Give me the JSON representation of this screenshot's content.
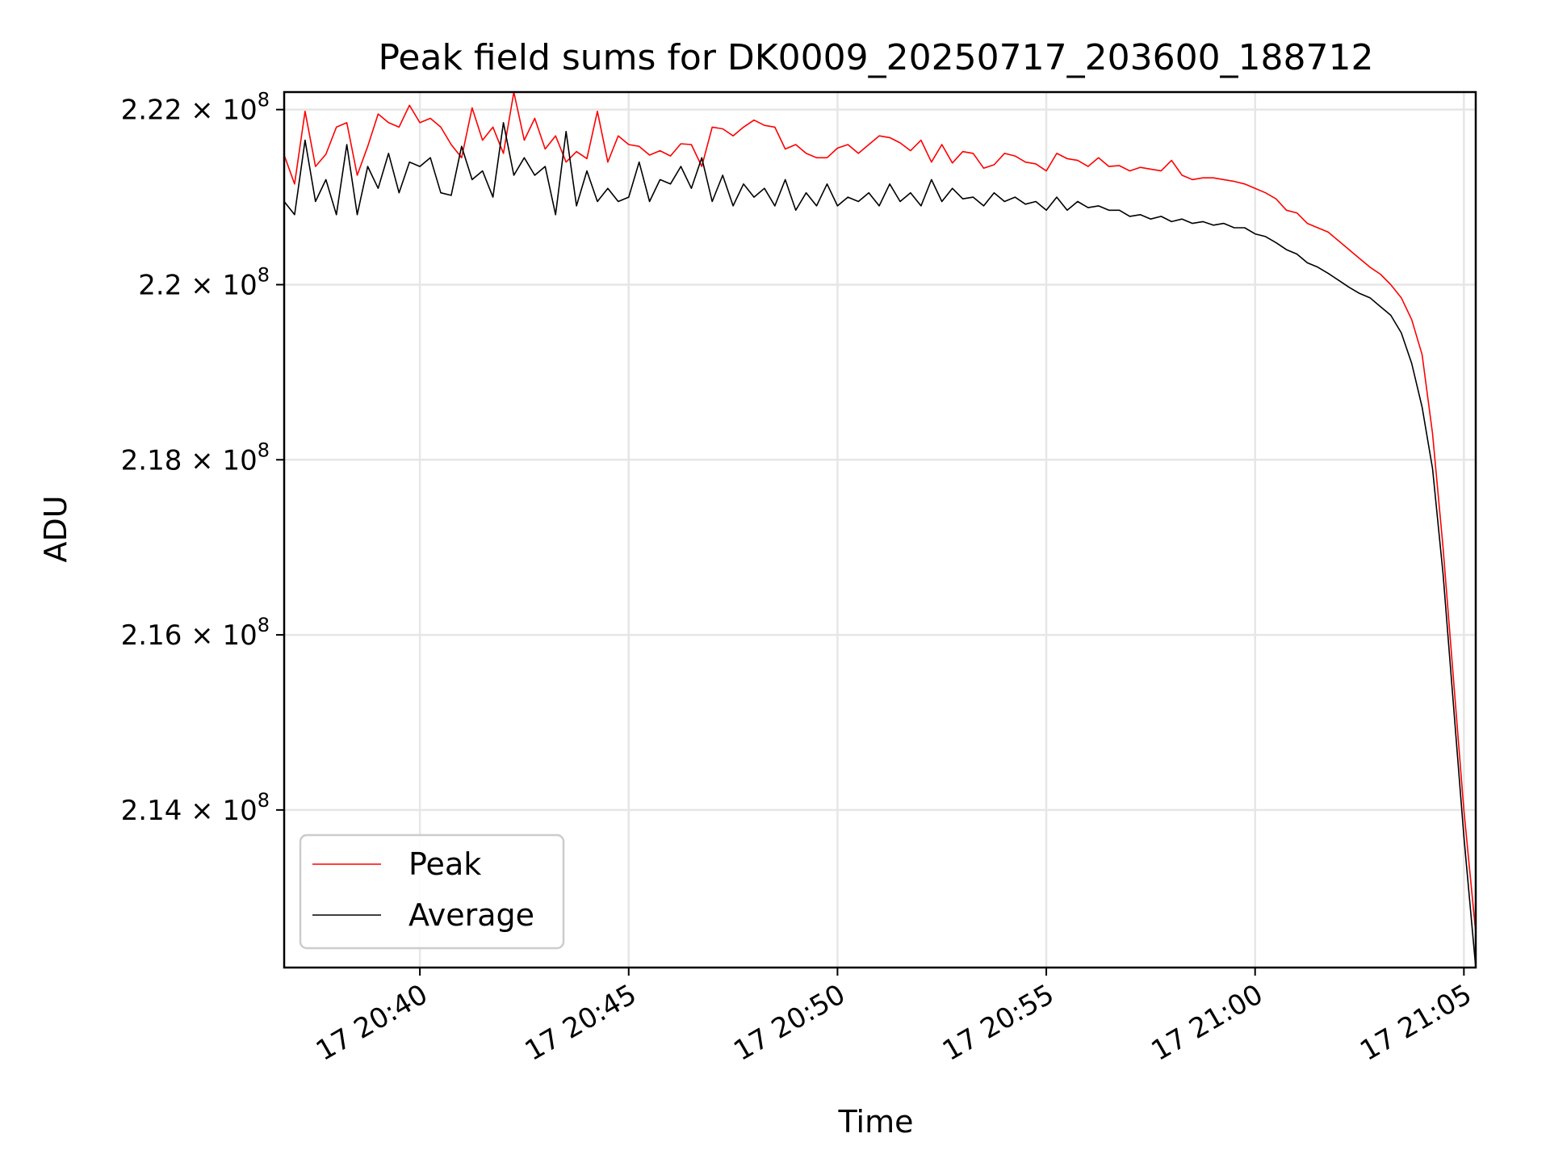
{
  "chart_data": {
    "type": "line",
    "title": "Peak field sums for DK0009_20250717_203600_188712",
    "xlabel": "Time",
    "ylabel": "ADU",
    "grid": true,
    "legend_position": "lower-left",
    "x_range": [
      "17 20:36:45",
      "17 21:05:17"
    ],
    "y_range": [
      212200000,
      222200000
    ],
    "x_ticks": [
      {
        "time": "17 20:40:00",
        "label": "17 20:40"
      },
      {
        "time": "17 20:45:00",
        "label": "17 20:45"
      },
      {
        "time": "17 20:50:00",
        "label": "17 20:50"
      },
      {
        "time": "17 20:55:00",
        "label": "17 20:55"
      },
      {
        "time": "17 21:00:00",
        "label": "17 21:00"
      },
      {
        "time": "17 21:05:00",
        "label": "17 21:05"
      }
    ],
    "y_ticks": [
      {
        "value": 221999999,
        "mantissa": "2.22",
        "exp": "8"
      },
      {
        "value": 220000000,
        "mantissa": "2.2",
        "exp": "8"
      },
      {
        "value": 218000000,
        "mantissa": "2.18",
        "exp": "8"
      },
      {
        "value": 216000000,
        "mantissa": "2.16",
        "exp": "8"
      },
      {
        "value": 214000000,
        "mantissa": "2.14",
        "exp": "8"
      }
    ],
    "series": [
      {
        "name": "Peak",
        "color": "#ff0000",
        "points": [
          [
            "17 20:36:45",
            221480000
          ],
          [
            "17 20:37:00",
            221150000
          ],
          [
            "17 20:37:15",
            221980000
          ],
          [
            "17 20:37:30",
            221350000
          ],
          [
            "17 20:37:45",
            221490000
          ],
          [
            "17 20:38:00",
            221800000
          ],
          [
            "17 20:38:15",
            221850000
          ],
          [
            "17 20:38:30",
            221250000
          ],
          [
            "17 20:38:45",
            221580000
          ],
          [
            "17 20:39:00",
            221950000
          ],
          [
            "17 20:39:15",
            221850000
          ],
          [
            "17 20:39:30",
            221800000
          ],
          [
            "17 20:39:45",
            222050000
          ],
          [
            "17 20:40:00",
            221850000
          ],
          [
            "17 20:40:15",
            221900000
          ],
          [
            "17 20:40:30",
            221800000
          ],
          [
            "17 20:40:45",
            221600000
          ],
          [
            "17 20:41:00",
            221450000
          ],
          [
            "17 20:41:15",
            222020000
          ],
          [
            "17 20:41:30",
            221650000
          ],
          [
            "17 20:41:45",
            221800000
          ],
          [
            "17 20:42:00",
            221500000
          ],
          [
            "17 20:42:15",
            222200000
          ],
          [
            "17 20:42:30",
            221650000
          ],
          [
            "17 20:42:45",
            221900000
          ],
          [
            "17 20:43:00",
            221550000
          ],
          [
            "17 20:43:15",
            221700000
          ],
          [
            "17 20:43:30",
            221400000
          ],
          [
            "17 20:43:45",
            221520000
          ],
          [
            "17 20:44:00",
            221440000
          ],
          [
            "17 20:44:15",
            221980000
          ],
          [
            "17 20:44:30",
            221400000
          ],
          [
            "17 20:44:45",
            221700000
          ],
          [
            "17 20:45:00",
            221600000
          ],
          [
            "17 20:45:15",
            221580000
          ],
          [
            "17 20:45:30",
            221480000
          ],
          [
            "17 20:45:45",
            221530000
          ],
          [
            "17 20:46:00",
            221470000
          ],
          [
            "17 20:46:15",
            221610000
          ],
          [
            "17 20:46:30",
            221600000
          ],
          [
            "17 20:46:45",
            221350000
          ],
          [
            "17 20:47:00",
            221800000
          ],
          [
            "17 20:47:15",
            221780000
          ],
          [
            "17 20:47:30",
            221700000
          ],
          [
            "17 20:47:45",
            221800000
          ],
          [
            "17 20:48:00",
            221880000
          ],
          [
            "17 20:48:15",
            221820000
          ],
          [
            "17 20:48:30",
            221800000
          ],
          [
            "17 20:48:45",
            221550000
          ],
          [
            "17 20:49:00",
            221600000
          ],
          [
            "17 20:49:15",
            221500000
          ],
          [
            "17 20:49:30",
            221450000
          ],
          [
            "17 20:49:45",
            221450000
          ],
          [
            "17 20:50:00",
            221560000
          ],
          [
            "17 20:50:15",
            221600000
          ],
          [
            "17 20:50:30",
            221500000
          ],
          [
            "17 20:50:45",
            221600000
          ],
          [
            "17 20:51:00",
            221700000
          ],
          [
            "17 20:51:15",
            221680000
          ],
          [
            "17 20:51:30",
            221620000
          ],
          [
            "17 20:51:45",
            221530000
          ],
          [
            "17 20:52:00",
            221650000
          ],
          [
            "17 20:52:15",
            221400000
          ],
          [
            "17 20:52:30",
            221600000
          ],
          [
            "17 20:52:45",
            221390000
          ],
          [
            "17 20:53:00",
            221520000
          ],
          [
            "17 20:53:15",
            221500000
          ],
          [
            "17 20:53:30",
            221330000
          ],
          [
            "17 20:53:45",
            221370000
          ],
          [
            "17 20:54:00",
            221500000
          ],
          [
            "17 20:54:15",
            221470000
          ],
          [
            "17 20:54:30",
            221400000
          ],
          [
            "17 20:54:45",
            221380000
          ],
          [
            "17 20:55:00",
            221300000
          ],
          [
            "17 20:55:15",
            221500000
          ],
          [
            "17 20:55:30",
            221440000
          ],
          [
            "17 20:55:45",
            221420000
          ],
          [
            "17 20:56:00",
            221350000
          ],
          [
            "17 20:56:15",
            221450000
          ],
          [
            "17 20:56:30",
            221350000
          ],
          [
            "17 20:56:45",
            221360000
          ],
          [
            "17 20:57:00",
            221300000
          ],
          [
            "17 20:57:15",
            221340000
          ],
          [
            "17 20:57:30",
            221320000
          ],
          [
            "17 20:57:45",
            221300000
          ],
          [
            "17 20:58:00",
            221420000
          ],
          [
            "17 20:58:15",
            221250000
          ],
          [
            "17 20:58:30",
            221200000
          ],
          [
            "17 20:58:45",
            221220000
          ],
          [
            "17 20:59:00",
            221220000
          ],
          [
            "17 20:59:15",
            221200000
          ],
          [
            "17 20:59:30",
            221180000
          ],
          [
            "17 20:59:45",
            221150000
          ],
          [
            "17 21:00:00",
            221100000
          ],
          [
            "17 21:00:15",
            221050000
          ],
          [
            "17 21:00:30",
            220980000
          ],
          [
            "17 21:00:45",
            220850000
          ],
          [
            "17 21:01:00",
            220820000
          ],
          [
            "17 21:01:15",
            220700000
          ],
          [
            "17 21:01:30",
            220650000
          ],
          [
            "17 21:01:45",
            220600000
          ],
          [
            "17 21:02:00",
            220500000
          ],
          [
            "17 21:02:15",
            220400000
          ],
          [
            "17 21:02:30",
            220300000
          ],
          [
            "17 21:02:45",
            220200000
          ],
          [
            "17 21:03:00",
            220120000
          ],
          [
            "17 21:03:15",
            220000000
          ],
          [
            "17 21:03:30",
            219850000
          ],
          [
            "17 21:03:45",
            219600000
          ],
          [
            "17 21:04:00",
            219200000
          ],
          [
            "17 21:04:15",
            218300000
          ],
          [
            "17 21:04:30",
            217000000
          ],
          [
            "17 21:04:45",
            215500000
          ],
          [
            "17 21:05:00",
            214000000
          ],
          [
            "17 21:05:17",
            212600000
          ]
        ]
      },
      {
        "name": "Average",
        "color": "#000000",
        "points": [
          [
            "17 20:36:45",
            220950000
          ],
          [
            "17 20:37:00",
            220800000
          ],
          [
            "17 20:37:15",
            221650000
          ],
          [
            "17 20:37:30",
            220950000
          ],
          [
            "17 20:37:45",
            221200000
          ],
          [
            "17 20:38:00",
            220800000
          ],
          [
            "17 20:38:15",
            221600000
          ],
          [
            "17 20:38:30",
            220800000
          ],
          [
            "17 20:38:45",
            221350000
          ],
          [
            "17 20:39:00",
            221100000
          ],
          [
            "17 20:39:15",
            221500000
          ],
          [
            "17 20:39:30",
            221050000
          ],
          [
            "17 20:39:45",
            221400000
          ],
          [
            "17 20:40:00",
            221350000
          ],
          [
            "17 20:40:15",
            221450000
          ],
          [
            "17 20:40:30",
            221050000
          ],
          [
            "17 20:40:45",
            221020000
          ],
          [
            "17 20:41:00",
            221580000
          ],
          [
            "17 20:41:15",
            221200000
          ],
          [
            "17 20:41:30",
            221300000
          ],
          [
            "17 20:41:45",
            221000000
          ],
          [
            "17 20:42:00",
            221850000
          ],
          [
            "17 20:42:15",
            221250000
          ],
          [
            "17 20:42:30",
            221450000
          ],
          [
            "17 20:42:45",
            221250000
          ],
          [
            "17 20:43:00",
            221350000
          ],
          [
            "17 20:43:15",
            220800000
          ],
          [
            "17 20:43:30",
            221750000
          ],
          [
            "17 20:43:45",
            220900000
          ],
          [
            "17 20:44:00",
            221300000
          ],
          [
            "17 20:44:15",
            220950000
          ],
          [
            "17 20:44:30",
            221100000
          ],
          [
            "17 20:44:45",
            220950000
          ],
          [
            "17 20:45:00",
            221000000
          ],
          [
            "17 20:45:15",
            221400000
          ],
          [
            "17 20:45:30",
            220950000
          ],
          [
            "17 20:45:45",
            221200000
          ],
          [
            "17 20:46:00",
            221150000
          ],
          [
            "17 20:46:15",
            221350000
          ],
          [
            "17 20:46:30",
            221100000
          ],
          [
            "17 20:46:45",
            221450000
          ],
          [
            "17 20:47:00",
            220950000
          ],
          [
            "17 20:47:15",
            221250000
          ],
          [
            "17 20:47:30",
            220900000
          ],
          [
            "17 20:47:45",
            221150000
          ],
          [
            "17 20:48:00",
            221000000
          ],
          [
            "17 20:48:15",
            221100000
          ],
          [
            "17 20:48:30",
            220900000
          ],
          [
            "17 20:48:45",
            221200000
          ],
          [
            "17 20:49:00",
            220850000
          ],
          [
            "17 20:49:15",
            221050000
          ],
          [
            "17 20:49:30",
            220900000
          ],
          [
            "17 20:49:45",
            221150000
          ],
          [
            "17 20:50:00",
            220900000
          ],
          [
            "17 20:50:15",
            221000000
          ],
          [
            "17 20:50:30",
            220950000
          ],
          [
            "17 20:50:45",
            221050000
          ],
          [
            "17 20:51:00",
            220900000
          ],
          [
            "17 20:51:15",
            221150000
          ],
          [
            "17 20:51:30",
            220950000
          ],
          [
            "17 20:51:45",
            221050000
          ],
          [
            "17 20:52:00",
            220900000
          ],
          [
            "17 20:52:15",
            221200000
          ],
          [
            "17 20:52:30",
            220950000
          ],
          [
            "17 20:52:45",
            221100000
          ],
          [
            "17 20:53:00",
            220980000
          ],
          [
            "17 20:53:15",
            221000000
          ],
          [
            "17 20:53:30",
            220900000
          ],
          [
            "17 20:53:45",
            221050000
          ],
          [
            "17 20:54:00",
            220950000
          ],
          [
            "17 20:54:15",
            221000000
          ],
          [
            "17 20:54:30",
            220920000
          ],
          [
            "17 20:54:45",
            220950000
          ],
          [
            "17 20:55:00",
            220850000
          ],
          [
            "17 20:55:15",
            221000000
          ],
          [
            "17 20:55:30",
            220850000
          ],
          [
            "17 20:55:45",
            220950000
          ],
          [
            "17 20:56:00",
            220880000
          ],
          [
            "17 20:56:15",
            220900000
          ],
          [
            "17 20:56:30",
            220850000
          ],
          [
            "17 20:56:45",
            220850000
          ],
          [
            "17 20:57:00",
            220780000
          ],
          [
            "17 20:57:15",
            220800000
          ],
          [
            "17 20:57:30",
            220750000
          ],
          [
            "17 20:57:45",
            220780000
          ],
          [
            "17 20:58:00",
            220720000
          ],
          [
            "17 20:58:15",
            220750000
          ],
          [
            "17 20:58:30",
            220700000
          ],
          [
            "17 20:58:45",
            220720000
          ],
          [
            "17 20:59:00",
            220680000
          ],
          [
            "17 20:59:15",
            220700000
          ],
          [
            "17 20:59:30",
            220650000
          ],
          [
            "17 20:59:45",
            220650000
          ],
          [
            "17 21:00:00",
            220580000
          ],
          [
            "17 21:00:15",
            220550000
          ],
          [
            "17 21:00:30",
            220480000
          ],
          [
            "17 21:00:45",
            220400000
          ],
          [
            "17 21:01:00",
            220350000
          ],
          [
            "17 21:01:15",
            220250000
          ],
          [
            "17 21:01:30",
            220200000
          ],
          [
            "17 21:01:45",
            220130000
          ],
          [
            "17 21:02:00",
            220050000
          ],
          [
            "17 21:02:15",
            219970000
          ],
          [
            "17 21:02:30",
            219900000
          ],
          [
            "17 21:02:45",
            219850000
          ],
          [
            "17 21:03:00",
            219750000
          ],
          [
            "17 21:03:15",
            219650000
          ],
          [
            "17 21:03:30",
            219450000
          ],
          [
            "17 21:03:45",
            219100000
          ],
          [
            "17 21:04:00",
            218600000
          ],
          [
            "17 21:04:15",
            217900000
          ],
          [
            "17 21:04:30",
            216700000
          ],
          [
            "17 21:04:45",
            215200000
          ],
          [
            "17 21:05:00",
            213700000
          ],
          [
            "17 21:05:17",
            212200000
          ]
        ]
      }
    ]
  }
}
